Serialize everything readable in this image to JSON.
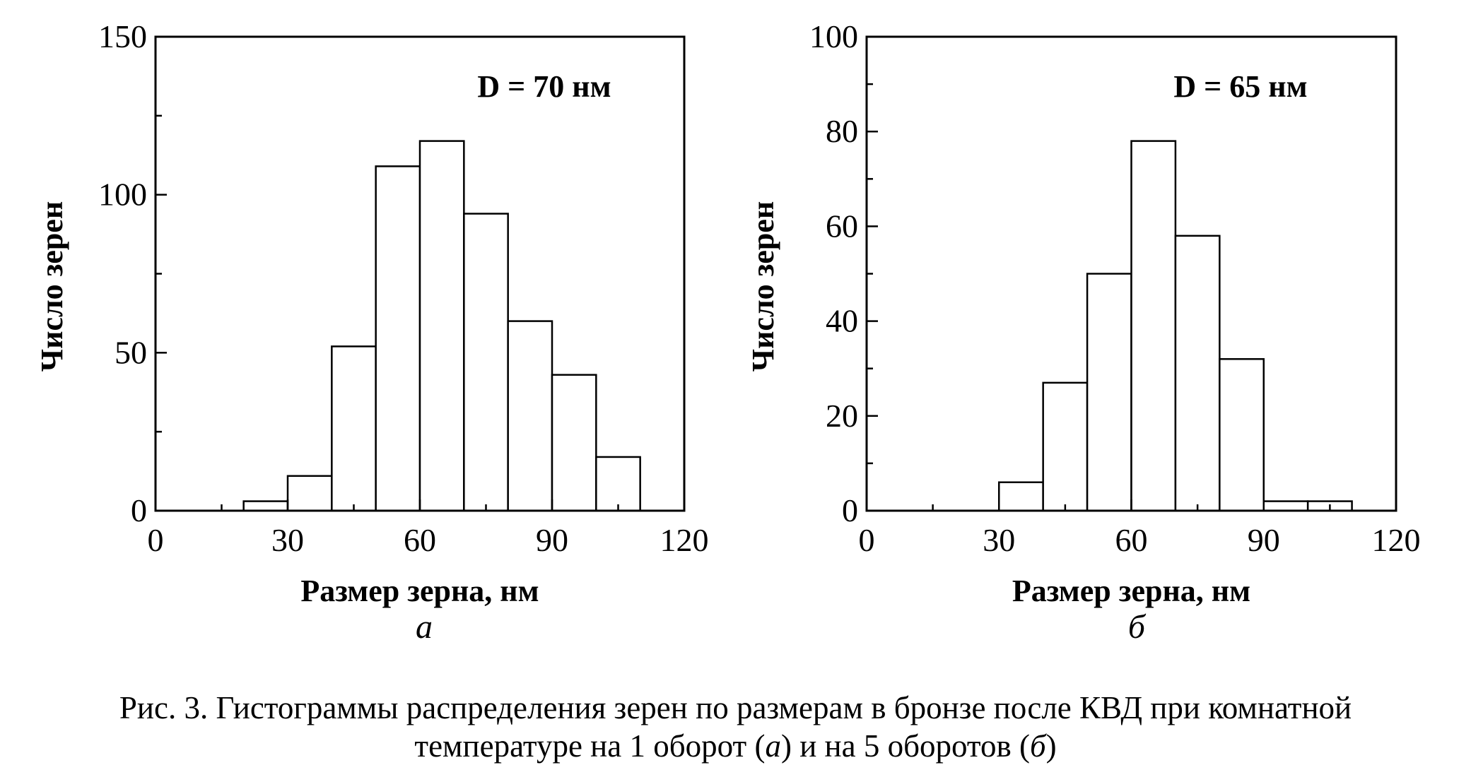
{
  "chart_data": [
    {
      "type": "bar",
      "histogram": true,
      "bin_edges": [
        20,
        30,
        40,
        50,
        60,
        70,
        80,
        90,
        100,
        110
      ],
      "values": [
        3,
        11,
        52,
        109,
        117,
        94,
        60,
        43,
        17
      ],
      "xlabel": "Размер зерна, нм",
      "ylabel": "Число зерен",
      "xlim": [
        0,
        120
      ],
      "ylim": [
        0,
        150
      ],
      "xticks": [
        0,
        30,
        60,
        90,
        120
      ],
      "yticks": [
        0,
        50,
        100,
        150
      ],
      "annotation": "D = 70 нм",
      "panel_label": "а",
      "grid": false
    },
    {
      "type": "bar",
      "histogram": true,
      "bin_edges": [
        30,
        40,
        50,
        60,
        70,
        80,
        90,
        100,
        110
      ],
      "values": [
        6,
        27,
        50,
        78,
        58,
        32,
        2,
        2
      ],
      "xlabel": "Размер зерна, нм",
      "ylabel": "Число зерен",
      "xlim": [
        0,
        120
      ],
      "ylim": [
        0,
        100
      ],
      "xticks": [
        0,
        30,
        60,
        90,
        120
      ],
      "yticks": [
        0,
        20,
        40,
        60,
        80,
        100
      ],
      "annotation": "D = 65 нм",
      "panel_label": "б",
      "grid": false
    }
  ],
  "caption": {
    "line1": "Рис. 3. Гистограммы распределения зерен по размерам в бронзе после КВД при комнатной",
    "line2_before": "температуре на 1 оборот (",
    "line2_a": "а",
    "line2_middle": ") и на 5 оборотов (",
    "line2_b": "б",
    "line2_end": ")"
  }
}
